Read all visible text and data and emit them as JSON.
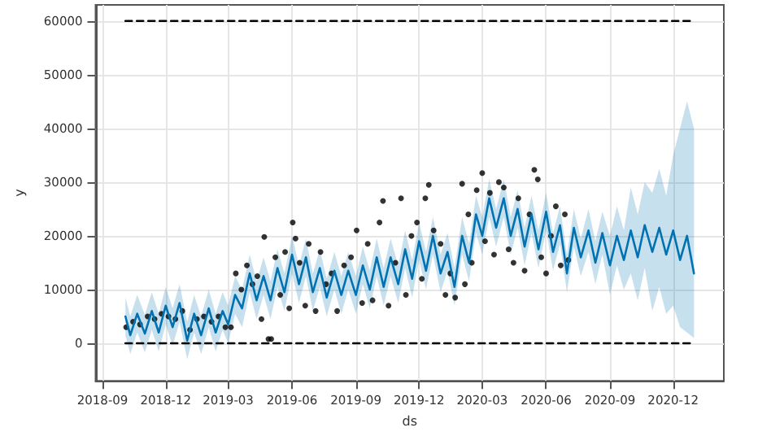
{
  "chart_data": {
    "type": "line",
    "xlabel": "ds",
    "ylabel": "y",
    "xlim": [
      "2018-08-22",
      "2021-02-12"
    ],
    "ylim": [
      -7000,
      63000
    ],
    "xticks": [
      "2018-09",
      "2018-12",
      "2019-03",
      "2019-06",
      "2019-09",
      "2019-12",
      "2020-03",
      "2020-06",
      "2020-09",
      "2020-12"
    ],
    "yticks": [
      0,
      10000,
      20000,
      30000,
      40000,
      50000,
      60000
    ],
    "grid": true,
    "series": [
      {
        "type": "scatter",
        "marker": "circle",
        "color": "#000000",
        "x": [
          "2018-10-05",
          "2018-10-15",
          "2018-10-25",
          "2018-11-05",
          "2018-11-15",
          "2018-11-25",
          "2018-12-05",
          "2018-12-15",
          "2018-12-25",
          "2019-01-05",
          "2019-01-15",
          "2019-01-25",
          "2019-02-05",
          "2019-02-15",
          "2019-02-25",
          "2019-03-05",
          "2019-03-12",
          "2019-03-20",
          "2019-03-28",
          "2019-04-05",
          "2019-04-12",
          "2019-04-18",
          "2019-04-22",
          "2019-04-28",
          "2019-05-02",
          "2019-05-08",
          "2019-05-15",
          "2019-05-22",
          "2019-05-28",
          "2019-06-02",
          "2019-06-06",
          "2019-06-12",
          "2019-06-20",
          "2019-06-25",
          "2019-07-05",
          "2019-07-12",
          "2019-07-20",
          "2019-07-28",
          "2019-08-05",
          "2019-08-15",
          "2019-08-25",
          "2019-09-02",
          "2019-09-10",
          "2019-09-18",
          "2019-09-25",
          "2019-10-05",
          "2019-10-10",
          "2019-10-18",
          "2019-10-28",
          "2019-11-05",
          "2019-11-12",
          "2019-11-20",
          "2019-11-28",
          "2019-12-05",
          "2019-12-10",
          "2019-12-15",
          "2019-12-22",
          "2020-01-01",
          "2020-01-08",
          "2020-01-15",
          "2020-01-22",
          "2020-02-01",
          "2020-02-05",
          "2020-02-10",
          "2020-02-15",
          "2020-02-22",
          "2020-03-01",
          "2020-03-05",
          "2020-03-12",
          "2020-03-18",
          "2020-03-25",
          "2020-04-01",
          "2020-04-08",
          "2020-04-15",
          "2020-04-22",
          "2020-05-01",
          "2020-05-08",
          "2020-05-15",
          "2020-05-20",
          "2020-05-25",
          "2020-06-01",
          "2020-06-08",
          "2020-06-15",
          "2020-06-22",
          "2020-06-28",
          "2020-07-03"
        ],
        "values": [
          3000,
          4000,
          3500,
          5000,
          4500,
          5500,
          5000,
          4500,
          6000,
          2500,
          4500,
          5000,
          4000,
          5000,
          3000,
          3000,
          13000,
          10000,
          14500,
          11000,
          12500,
          4500,
          19800,
          800,
          800,
          16000,
          9000,
          17000,
          6500,
          22500,
          19500,
          15000,
          7000,
          18500,
          6000,
          17000,
          11000,
          13000,
          6000,
          14500,
          16000,
          21000,
          7500,
          18500,
          8000,
          22500,
          26500,
          7000,
          15000,
          27000,
          9000,
          20000,
          22500,
          12000,
          27000,
          29500,
          21000,
          18500,
          9000,
          13000,
          8500,
          29700,
          11000,
          24000,
          15000,
          28500,
          31700,
          19000,
          28000,
          16500,
          30000,
          29000,
          17500,
          15000,
          27000,
          13500,
          24000,
          32300,
          30500,
          16000,
          13000,
          20000,
          25500,
          14500,
          24000,
          15500
        ]
      },
      {
        "marker": "none",
        "color": "#0072b2",
        "x": [
          "2018-10-04",
          "2018-10-11",
          "2018-10-21",
          "2018-11-01",
          "2018-11-11",
          "2018-11-21",
          "2018-12-01",
          "2018-12-11",
          "2018-12-21",
          "2019-01-01",
          "2019-01-11",
          "2019-01-21",
          "2019-02-01",
          "2019-02-11",
          "2019-02-21",
          "2019-03-01",
          "2019-03-11",
          "2019-03-21",
          "2019-04-01",
          "2019-04-11",
          "2019-04-21",
          "2019-05-01",
          "2019-05-11",
          "2019-05-21",
          "2019-06-01",
          "2019-06-11",
          "2019-06-21",
          "2019-07-01",
          "2019-07-11",
          "2019-07-21",
          "2019-08-01",
          "2019-08-11",
          "2019-08-21",
          "2019-09-01",
          "2019-09-11",
          "2019-09-21",
          "2019-10-01",
          "2019-10-11",
          "2019-10-21",
          "2019-11-01",
          "2019-11-11",
          "2019-11-21",
          "2019-12-01",
          "2019-12-11",
          "2019-12-21",
          "2020-01-01",
          "2020-01-11",
          "2020-01-21",
          "2020-02-01",
          "2020-02-11",
          "2020-02-21",
          "2020-03-01",
          "2020-03-11",
          "2020-03-21",
          "2020-04-01",
          "2020-04-11",
          "2020-04-21",
          "2020-05-01",
          "2020-05-11",
          "2020-05-21",
          "2020-06-01",
          "2020-06-11",
          "2020-06-21",
          "2020-07-01",
          "2020-07-11",
          "2020-07-21",
          "2020-08-01",
          "2020-08-11",
          "2020-08-21",
          "2020-09-01",
          "2020-09-11",
          "2020-09-21",
          "2020-10-01",
          "2020-10-11",
          "2020-10-21",
          "2020-11-01",
          "2020-11-11",
          "2020-11-21",
          "2020-12-01",
          "2020-12-11",
          "2020-12-21",
          "2020-12-31"
        ],
        "values": [
          5000,
          1500,
          5500,
          1800,
          6000,
          2000,
          7000,
          3000,
          7500,
          500,
          5500,
          1500,
          6500,
          2000,
          6000,
          3500,
          9000,
          6500,
          13000,
          8000,
          12500,
          8000,
          14000,
          9500,
          16500,
          11000,
          16000,
          9500,
          14000,
          8500,
          13500,
          9000,
          13500,
          9000,
          14500,
          10000,
          16000,
          10500,
          16000,
          11000,
          17500,
          12000,
          19000,
          13500,
          20000,
          13000,
          17000,
          10500,
          20000,
          15000,
          24000,
          20000,
          27000,
          21500,
          27000,
          20000,
          25000,
          18000,
          24000,
          17500,
          24500,
          17000,
          22000,
          13000,
          21500,
          16000,
          21000,
          15000,
          20500,
          14500,
          20000,
          15500,
          21000,
          16000,
          22000,
          17000,
          21500,
          16500,
          21000,
          15500,
          20000,
          13000
        ],
        "lower": [
          1500,
          -2000,
          2000,
          -1700,
          2500,
          -1500,
          3500,
          -500,
          4000,
          -3000,
          2000,
          -2000,
          3000,
          -1500,
          2500,
          0,
          5500,
          3000,
          9500,
          4500,
          9000,
          4500,
          10500,
          6000,
          13000,
          7500,
          12500,
          6000,
          10500,
          5000,
          10000,
          5500,
          10000,
          5500,
          11000,
          6500,
          12500,
          7000,
          12500,
          7500,
          14000,
          8500,
          15500,
          10000,
          16500,
          9500,
          13500,
          7000,
          16500,
          11500,
          20500,
          16500,
          23500,
          18000,
          23500,
          16500,
          21500,
          14500,
          20500,
          14000,
          21000,
          13500,
          18500,
          9500,
          18000,
          12500,
          17000,
          11000,
          16500,
          9000,
          14500,
          10000,
          13000,
          8000,
          14000,
          6000,
          10500,
          5500,
          7000,
          3000,
          2000,
          1000
        ],
        "upper": [
          8500,
          5000,
          9000,
          5300,
          9500,
          5500,
          10500,
          6500,
          11000,
          4000,
          9000,
          5000,
          10000,
          5500,
          9500,
          7000,
          12500,
          10000,
          16500,
          11500,
          16000,
          11500,
          17500,
          13000,
          20000,
          14500,
          19500,
          13000,
          17500,
          12000,
          17000,
          12500,
          17000,
          12500,
          18000,
          13500,
          19500,
          14000,
          19500,
          14500,
          21000,
          15500,
          22500,
          17000,
          23500,
          16500,
          20500,
          14000,
          23500,
          18500,
          27500,
          23500,
          30500,
          25000,
          30500,
          23500,
          28500,
          21500,
          27500,
          21000,
          28000,
          20500,
          25500,
          16500,
          25000,
          19500,
          25000,
          19000,
          24500,
          20000,
          25500,
          21000,
          29000,
          24000,
          30000,
          28000,
          32500,
          27500,
          35000,
          40000,
          45000,
          40000
        ]
      },
      {
        "marker": "none",
        "color": "#000000",
        "line_style": "dashed",
        "x": [
          "2018-10-04",
          "2020-12-31"
        ],
        "values": [
          60000,
          60000
        ]
      },
      {
        "marker": "none",
        "color": "#000000",
        "line_style": "dashed",
        "x": [
          "2018-10-04",
          "2020-12-31"
        ],
        "values": [
          0,
          0
        ]
      }
    ]
  }
}
